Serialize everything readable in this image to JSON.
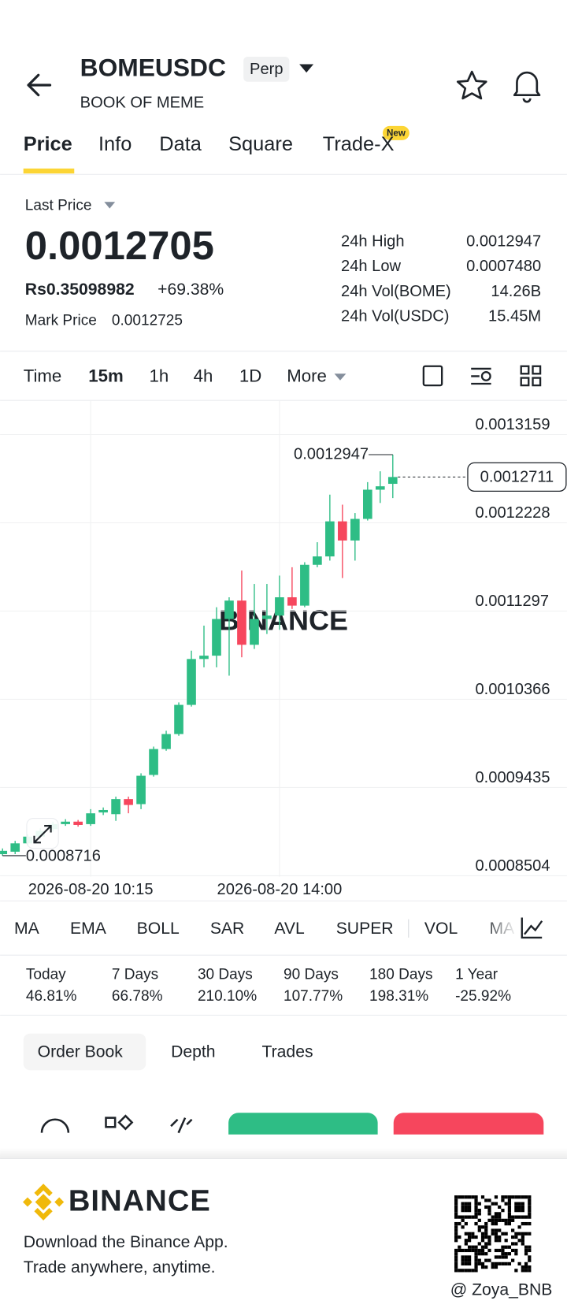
{
  "header": {
    "symbol": "BOMEUSDC",
    "badge": "Perp",
    "subtitle": "BOOK OF MEME"
  },
  "tabs": {
    "items": [
      "Price",
      "Info",
      "Data",
      "Square",
      "Trade-X"
    ],
    "new_badge": "New"
  },
  "price_panel": {
    "last_price_label": "Last Price",
    "last_price": "0.0012705",
    "fiat_price": "Rs0.35098982",
    "change": "+69.38%",
    "mark_price_label": "Mark Price",
    "mark_price": "0.0012725",
    "stats": [
      {
        "label": "24h High",
        "value": "0.0012947"
      },
      {
        "label": "24h Low",
        "value": "0.0007480"
      },
      {
        "label": "24h Vol(BOME)",
        "value": "14.26B"
      },
      {
        "label": "24h Vol(USDC)",
        "value": "15.45M"
      }
    ]
  },
  "intervals": {
    "items": [
      "Time",
      "15m",
      "1h",
      "4h",
      "1D",
      "More"
    ],
    "selected": 1
  },
  "chart_data": {
    "type": "candlestick",
    "watermark": "BINANCE",
    "up_color": "#2ebd85",
    "down_color": "#f6465d",
    "categories": [
      null,
      null,
      null,
      null,
      null,
      null,
      null,
      "2026-08-20 10:15",
      null,
      null,
      null,
      null,
      null,
      null,
      null,
      null,
      null,
      null,
      null,
      null,
      null,
      null,
      "2026-08-20 14:00",
      null,
      null,
      null,
      null,
      null,
      null,
      null,
      null,
      null
    ],
    "open": [
      0.0008732,
      0.0008758,
      0.0008846,
      0.0008917,
      0.0008996,
      0.0009049,
      0.0009075,
      0.0009049,
      0.0009172,
      0.0009154,
      0.0009313,
      0.000926,
      0.0009568,
      0.0009841,
      0.0009999,
      0.0010307,
      0.0010791,
      0.0010826,
      0.0011213,
      0.0011407,
      0.0010941,
      0.0011213,
      0.0011249,
      0.0011442,
      0.0011354,
      0.0011785,
      0.0011873,
      0.0012243,
      0.0012041,
      0.0012269,
      0.0012577,
      0.0012639
    ],
    "high": [
      0.0008793,
      0.0008873,
      0.0008943,
      0.0009005,
      0.0009075,
      0.0009101,
      0.0009093,
      0.0009207,
      0.0009225,
      0.0009339,
      0.0009339,
      0.0009585,
      0.0009867,
      0.0010034,
      0.0010333,
      0.0010879,
      0.0011143,
      0.0011337,
      0.0011442,
      0.0011724,
      0.0011583,
      0.0011583,
      0.0011671,
      0.0011759,
      0.0011812,
      0.0012023,
      0.0012525,
      0.0012419,
      0.0012331,
      0.0012657,
      0.0012771,
      0.0012947
    ],
    "low": [
      0.0008716,
      0.0008732,
      0.0008829,
      0.0008899,
      0.0008969,
      0.0009031,
      0.0009022,
      0.0009031,
      0.0009145,
      0.0009084,
      0.0009163,
      0.0009207,
      0.000955,
      0.0009823,
      0.0009981,
      0.0010289,
      0.0010703,
      0.0010703,
      0.0010615,
      0.0010809,
      0.0010897,
      0.0011055,
      0.0011099,
      0.0011319,
      0.0011337,
      0.0011759,
      0.0011829,
      0.0011645,
      0.0011829,
      0.0012252,
      0.0012437,
      0.0012489
    ],
    "close": [
      0.0008767,
      0.0008846,
      0.0008917,
      0.0008978,
      0.0009049,
      0.0009075,
      0.000904,
      0.0009163,
      0.0009198,
      0.0009313,
      0.0009251,
      0.0009559,
      0.0009841,
      0.0009999,
      0.0010307,
      0.0010791,
      0.0010826,
      0.0011213,
      0.0011407,
      0.0010941,
      0.0011213,
      0.0011249,
      0.0011442,
      0.0011354,
      0.0011785,
      0.0011873,
      0.0012243,
      0.0012041,
      0.0012269,
      0.0012577,
      0.0012613,
      0.0012711
    ],
    "ylim": [
      0.0008494,
      0.0013519
    ],
    "yticks": [
      0.0013159,
      0.0012228,
      0.0011297,
      0.0010366,
      0.0009435,
      0.0008504
    ],
    "grid": true
  },
  "indicators": [
    "MA",
    "EMA",
    "BOLL",
    "SAR",
    "AVL",
    "SUPER",
    "VOL",
    "MA"
  ],
  "performance": [
    {
      "label": "Today",
      "value": "46.81%",
      "color": "#2ebd85"
    },
    {
      "label": "7 Days",
      "value": "66.78%",
      "color": "#2ebd85"
    },
    {
      "label": "30 Days",
      "value": "210.10%",
      "color": "#2ebd85"
    },
    {
      "label": "90 Days",
      "value": "107.77%",
      "color": "#2ebd85"
    },
    {
      "label": "180 Days",
      "value": "198.31%",
      "color": "#2ebd85"
    },
    {
      "label": "1 Year",
      "value": "-25.92%",
      "color": "#f6465d"
    }
  ],
  "book_tabs": [
    "Order Book",
    "Depth",
    "Trades"
  ],
  "footer": {
    "brand": "BINANCE",
    "line1": "Download the Binance App.",
    "line2": "Trade anywhere, anytime.",
    "credit": "@ Zoya_BNB"
  }
}
